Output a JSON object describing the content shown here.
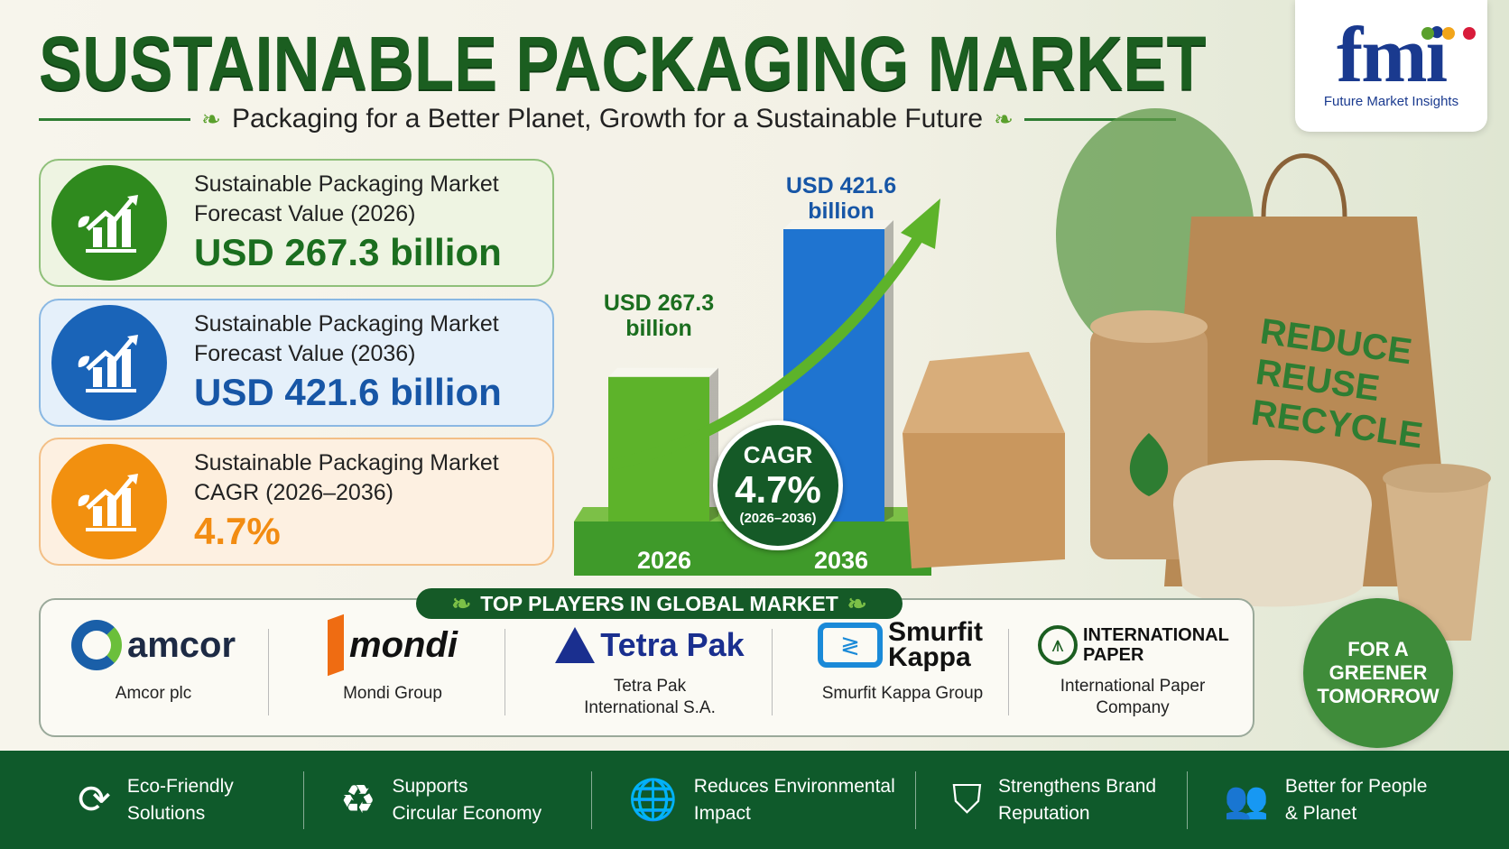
{
  "header": {
    "title": "SUSTAINABLE PACKAGING MARKET",
    "subtitle": "Packaging for a Better Planet, Growth for a Sustainable Future"
  },
  "logo": {
    "brand": "fmi",
    "name": "Future Market Insights"
  },
  "cards": [
    {
      "label1": "Sustainable Packaging Market",
      "label2": "Forecast Value (2026)",
      "value": "USD 267.3 billion",
      "color": "#1b6e1f",
      "icon": "growth-chart-icon"
    },
    {
      "label1": "Sustainable Packaging Market",
      "label2": "Forecast Value (2036)",
      "value": "USD 421.6 billion",
      "color": "#1756a6",
      "icon": "growth-chart-icon"
    },
    {
      "label1": "Sustainable Packaging Market",
      "label2": "CAGR (2026–2036)",
      "value": "4.7%",
      "color": "#f28c12",
      "icon": "growth-chart-icon"
    }
  ],
  "chart": {
    "bars": [
      {
        "year": "2026",
        "label1": "USD 267.3",
        "label2": "billion",
        "value": 267.3,
        "color": "#5db32a"
      },
      {
        "year": "2036",
        "label1": "USD 421.6",
        "label2": "billion",
        "value": 421.6,
        "color": "#1f74d0"
      }
    ],
    "cagr": {
      "title": "CAGR",
      "value": "4.7%",
      "period": "(2026–2036)"
    }
  },
  "bag_text": [
    "REDUCE",
    "REUSE",
    "RECYCLE"
  ],
  "players": {
    "title": "TOP PLAYERS IN GLOBAL MARKET",
    "items": [
      {
        "logo": "amcor",
        "name1": "Amcor plc",
        "name2": ""
      },
      {
        "logo": "mondi",
        "name1": "Mondi Group",
        "name2": ""
      },
      {
        "logo": "Tetra Pak",
        "name1": "Tetra Pak",
        "name2": "International S.A."
      },
      {
        "logo": "Smurfit Kappa",
        "name1": "Smurfit Kappa Group",
        "name2": ""
      },
      {
        "logo": "INTERNATIONAL PAPER",
        "name1": "International Paper",
        "name2": "Company"
      }
    ]
  },
  "badge": {
    "line1": "FOR A",
    "line2": "GREENER",
    "line3": "TOMORROW"
  },
  "footer": [
    {
      "l1": "Eco-Friendly",
      "l2": "Solutions",
      "icon": "recycle-arrows-icon"
    },
    {
      "l1": "Supports",
      "l2": "Circular Economy",
      "icon": "recycle-icon"
    },
    {
      "l1": "Reduces Environmental",
      "l2": "Impact",
      "icon": "globe-leaf-icon"
    },
    {
      "l1": "Strengthens Brand",
      "l2": "Reputation",
      "icon": "shield-leaf-icon"
    },
    {
      "l1": "Better for People",
      "l2": "& Planet",
      "icon": "people-icon"
    }
  ]
}
